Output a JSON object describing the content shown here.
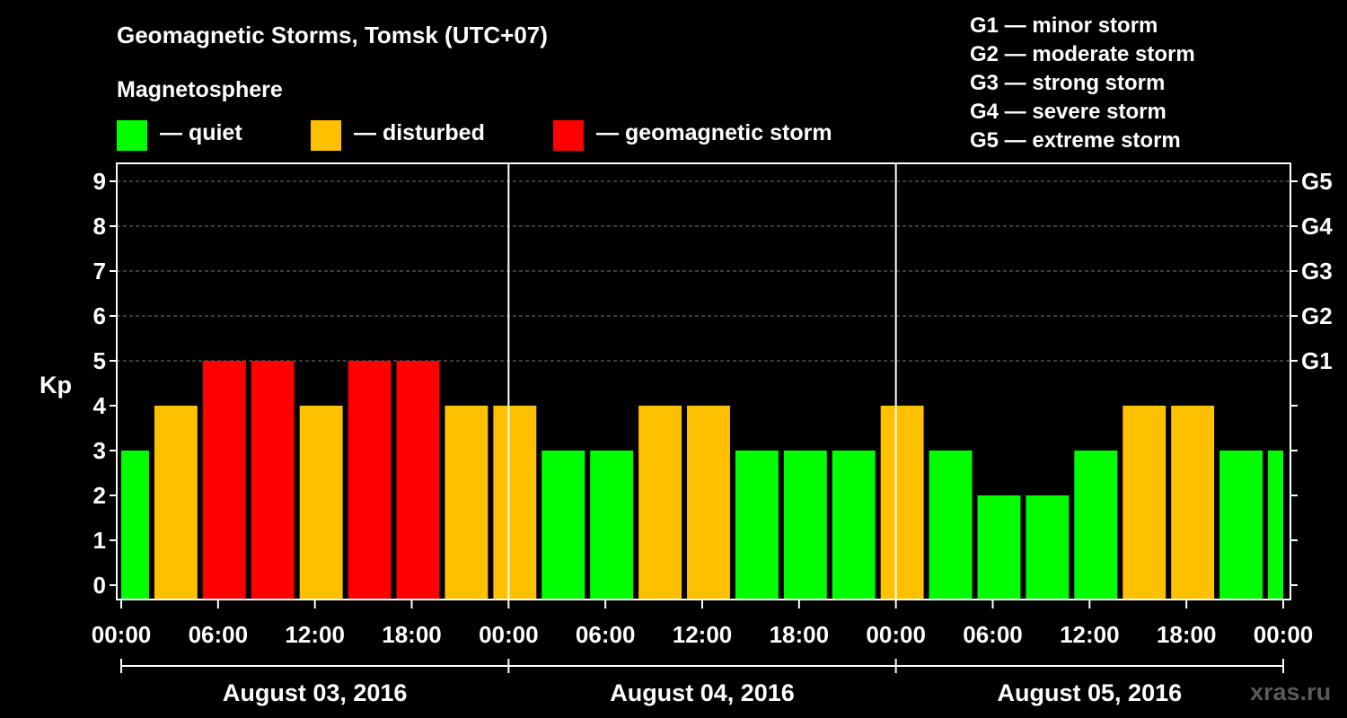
{
  "header": {
    "title": "Geomagnetic Storms, Tomsk (UTC+07)",
    "subtitle": "Magnetosphere"
  },
  "legend": {
    "items": [
      {
        "label": "— quiet",
        "color": "#00ff00"
      },
      {
        "label": "— disturbed",
        "color": "#ffc000"
      },
      {
        "label": "— geomagnetic storm",
        "color": "#ff0000"
      }
    ],
    "storm_levels": [
      "G1 — minor storm",
      "G2 — moderate storm",
      "G3 — strong storm",
      "G4 — severe storm",
      "G5 — extreme storm"
    ]
  },
  "watermark": "xras.ru",
  "chart_data": {
    "type": "bar",
    "ylabel": "Kp",
    "ylim": [
      0,
      9
    ],
    "y_ticks": [
      "0",
      "1",
      "2",
      "3",
      "4",
      "5",
      "6",
      "7",
      "8",
      "9"
    ],
    "right_ticks": [
      {
        "kp": 5,
        "label": "G1"
      },
      {
        "kp": 6,
        "label": "G2"
      },
      {
        "kp": 7,
        "label": "G3"
      },
      {
        "kp": 8,
        "label": "G4"
      },
      {
        "kp": 9,
        "label": "G5"
      }
    ],
    "x_tick_labels": [
      "00:00",
      "06:00",
      "12:00",
      "18:00",
      "00:00",
      "06:00",
      "12:00",
      "18:00",
      "00:00",
      "06:00",
      "12:00",
      "18:00",
      "00:00"
    ],
    "days": [
      "August 03, 2016",
      "August 04, 2016",
      "August 05, 2016"
    ],
    "bar_interval_hours": 3,
    "first_bar_start_hour": -1,
    "values": [
      3,
      4,
      5,
      5,
      4,
      5,
      5,
      4,
      4,
      3,
      3,
      4,
      4,
      3,
      3,
      3,
      4,
      3,
      2,
      2,
      3,
      4,
      4,
      3,
      3
    ],
    "categories": [
      "quiet",
      "disturbed",
      "storm",
      "storm",
      "disturbed",
      "storm",
      "storm",
      "disturbed",
      "disturbed",
      "quiet",
      "quiet",
      "disturbed",
      "disturbed",
      "quiet",
      "quiet",
      "quiet",
      "disturbed",
      "quiet",
      "quiet",
      "quiet",
      "quiet",
      "disturbed",
      "disturbed",
      "quiet",
      "quiet"
    ],
    "colors": {
      "quiet": "#00ff00",
      "disturbed": "#ffc000",
      "storm": "#ff0000"
    },
    "grid_levels": [
      5,
      6,
      7,
      8,
      9
    ]
  }
}
